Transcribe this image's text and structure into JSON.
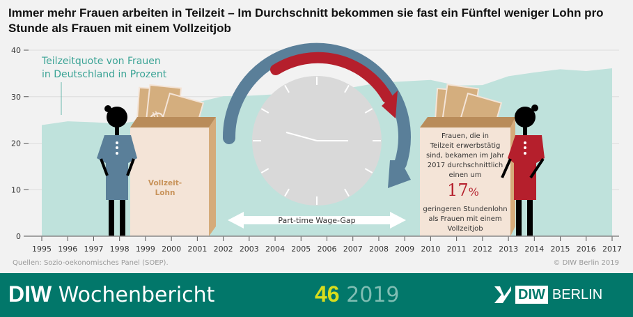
{
  "title": "Immer mehr Frauen arbeiten in Teilzeit – Im Durchschnitt bekommen sie fast ein Fünftel weniger Lohn pro Stunde als Frauen mit einem Vollzeitjob",
  "chart_data": {
    "type": "area",
    "series_label_line1": "Teilzeitquote von Frauen",
    "series_label_line2": "in Deutschland in Prozent",
    "x": [
      1995,
      1996,
      1997,
      1998,
      1999,
      2000,
      2001,
      2002,
      2003,
      2004,
      2005,
      2006,
      2007,
      2008,
      2009,
      2010,
      2011,
      2012,
      2013,
      2014,
      2015,
      2016,
      2017
    ],
    "values": [
      23.9,
      24.7,
      24.5,
      24.2,
      25.0,
      26.5,
      28.8,
      30.1,
      30.2,
      30.5,
      31.5,
      32.0,
      32.0,
      33.0,
      33.3,
      33.6,
      32.4,
      32.5,
      34.4,
      35.2,
      35.9,
      35.5,
      36.1
    ],
    "ylim": [
      0,
      40
    ],
    "yticks": [
      0,
      10,
      20,
      30,
      40
    ],
    "xtick_labels": [
      "1995",
      "1996",
      "1997",
      "1998",
      "1999",
      "2000",
      "2001",
      "2002",
      "2003",
      "2004",
      "2005",
      "2006",
      "2007",
      "2008",
      "2009",
      "2010",
      "2011",
      "2012",
      "2013",
      "2014",
      "2015",
      "2016",
      "2017"
    ],
    "grid": true,
    "area_color": "#bfe2dc"
  },
  "illustration": {
    "left_box_label_line1": "Vollzeit-",
    "left_box_label_line2": "Lohn",
    "gap_arrow_label": "Part-time Wage-Gap",
    "right_box_lines": [
      "Frauen, die in",
      "Teilzeit erwerbstätig",
      "sind, bekamen im Jahr",
      "2017 durchschnittlich",
      "einen um"
    ],
    "percent": "17",
    "percent_sign": "%",
    "right_box_lines_after": [
      "geringeren Stundenlohn",
      "als Frauen mit einem",
      "Vollzeitjob"
    ],
    "colors": {
      "blue": "#5a7f99",
      "red": "#b51f2c",
      "box": "#f4e4d7",
      "box_side": "#d5ab7a",
      "money": "#d4ae7e"
    }
  },
  "source": "Quellen: Sozio-oekonomisches Panel (SOEP).",
  "copyright": "© DIW Berlin 2019",
  "footer": {
    "brand_bold": "DIW",
    "brand": "Wochenbericht",
    "issue": "46",
    "year": "2019",
    "logo_text": "DIW",
    "logo_city": "BERLIN",
    "bg_color": "#02776a"
  }
}
